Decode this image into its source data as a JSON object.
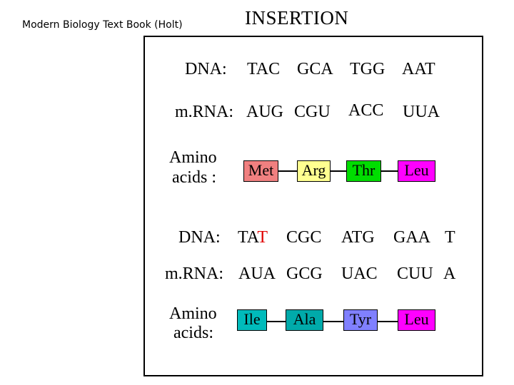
{
  "source_caption": "Modern Biology Text Book (Holt)",
  "title": "INSERTION",
  "original": {
    "dna_label": "DNA:",
    "dna_codons": [
      "TAC",
      "GCA",
      "TGG",
      "AAT"
    ],
    "mrna_label": "m.RNA:",
    "mrna_codons": [
      "AUG",
      "CGU",
      "ACC",
      "UUA"
    ],
    "amino_label_line1": "Amino",
    "amino_label_line2": "acids :",
    "amino_acids": [
      {
        "name": "Met",
        "color": "#f08080"
      },
      {
        "name": "Arg",
        "color": "#ffff90"
      },
      {
        "name": "Thr",
        "color": "#00dd00"
      },
      {
        "name": "Leu",
        "color": "#ff00ff"
      }
    ]
  },
  "mutated": {
    "dna_label": "DNA:",
    "dna_first_codon_prefix": "TA",
    "dna_inserted_base": "T",
    "dna_codons_rest": [
      "CGC",
      "ATG",
      "GAA",
      "T"
    ],
    "mrna_label": "m.RNA:",
    "mrna_codons": [
      "AUA",
      "GCG",
      "UAC",
      "CUU",
      "A"
    ],
    "amino_label_line1": "Amino",
    "amino_label_line2": "acids:",
    "amino_acids": [
      {
        "name": "Ile",
        "color": "#00bbbb"
      },
      {
        "name": "Ala",
        "color": "#00aaaa"
      },
      {
        "name": "Tyr",
        "color": "#8080ff"
      },
      {
        "name": "Leu",
        "color": "#ff00ff"
      }
    ]
  }
}
